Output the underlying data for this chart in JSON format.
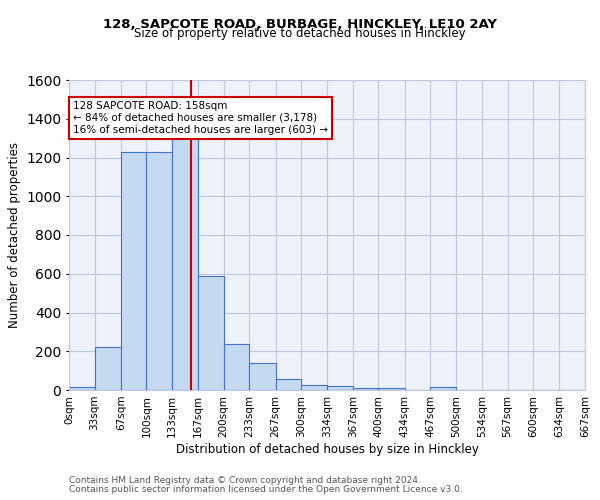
{
  "title1": "128, SAPCOTE ROAD, BURBAGE, HINCKLEY, LE10 2AY",
  "title2": "Size of property relative to detached houses in Hinckley",
  "xlabel": "Distribution of detached houses by size in Hinckley",
  "ylabel": "Number of detached properties",
  "footnote1": "Contains HM Land Registry data © Crown copyright and database right 2024.",
  "footnote2": "Contains public sector information licensed under the Open Government Licence v3.0.",
  "bin_labels": [
    "0sqm",
    "33sqm",
    "67sqm",
    "100sqm",
    "133sqm",
    "167sqm",
    "200sqm",
    "233sqm",
    "267sqm",
    "300sqm",
    "334sqm",
    "367sqm",
    "400sqm",
    "434sqm",
    "467sqm",
    "500sqm",
    "534sqm",
    "567sqm",
    "600sqm",
    "634sqm",
    "667sqm"
  ],
  "bar_values": [
    15,
    220,
    1230,
    1230,
    1300,
    590,
    240,
    140,
    55,
    28,
    22,
    10,
    10,
    0,
    18,
    0,
    0,
    0,
    0,
    0
  ],
  "bar_color": "#c5d9f1",
  "bar_edge_color": "#4472c4",
  "grid_color": "#c0c8e0",
  "bg_color": "#eef2fa",
  "annotation_text": "128 SAPCOTE ROAD: 158sqm\n← 84% of detached houses are smaller (3,178)\n16% of semi-detached houses are larger (603) →",
  "annotation_box_color": "white",
  "annotation_box_edge": "#cc0000",
  "vline_x": 158,
  "vline_color": "#cc0000",
  "ylim": [
    0,
    1600
  ],
  "yticks": [
    0,
    200,
    400,
    600,
    800,
    1000,
    1200,
    1400,
    1600
  ]
}
